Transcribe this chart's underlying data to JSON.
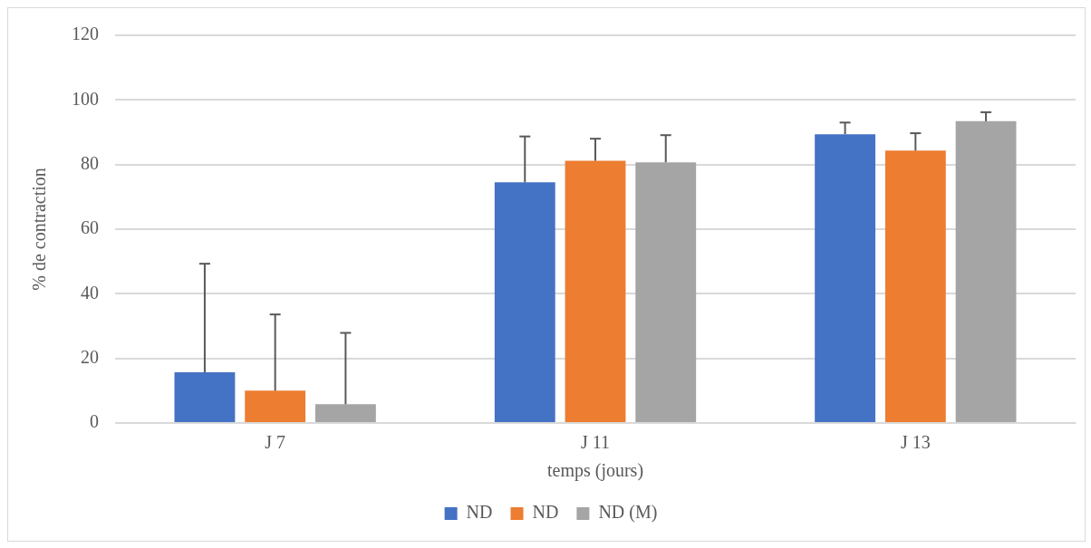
{
  "chart_data": {
    "type": "bar",
    "xlabel": "temps (jours)",
    "ylabel": "% de contraction",
    "categories": [
      "J 7",
      "J 11",
      "J 13"
    ],
    "series": [
      {
        "name": "ND",
        "color": "#4472c4",
        "values": [
          15.7,
          74.5,
          89.4
        ],
        "errors": [
          [
            15.7,
            49.3
          ],
          [
            74.5,
            88.7
          ],
          [
            89.4,
            93
          ]
        ]
      },
      {
        "name": "ND",
        "color": "#ed7d31",
        "values": [
          10,
          81.2,
          84.3
        ],
        "errors": [
          [
            10,
            33.6
          ],
          [
            81.2,
            88
          ],
          [
            84.3,
            89.7
          ]
        ]
      },
      {
        "name": "ND (M)",
        "color": "#a5a5a5",
        "values": [
          5.8,
          80.7,
          93.4
        ],
        "errors": [
          [
            5.8,
            27.9
          ],
          [
            80.7,
            89.1
          ],
          [
            93.4,
            96.2
          ]
        ]
      }
    ],
    "ylim": [
      0,
      120
    ],
    "yticks": [
      0,
      20,
      40,
      60,
      80,
      100,
      120
    ],
    "grid": "y",
    "legend": "bottom"
  }
}
